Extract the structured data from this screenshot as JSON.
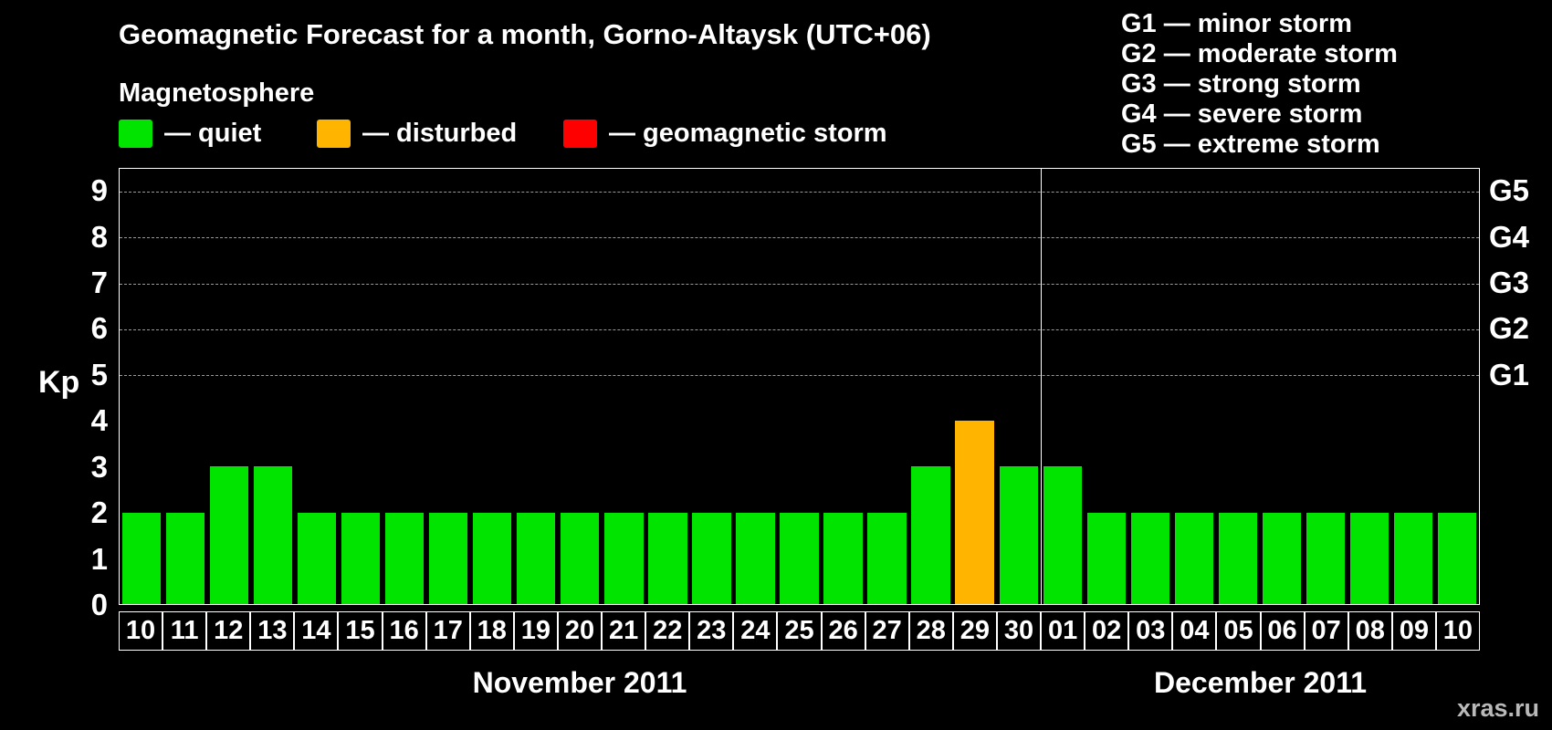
{
  "title": "Geomagnetic Forecast for a month, Gorno-Altaysk (UTC+06)",
  "subtitle": "Magnetosphere",
  "legend": [
    {
      "key": "quiet",
      "label": "— quiet",
      "color": "#00e400"
    },
    {
      "key": "disturbed",
      "label": "— disturbed",
      "color": "#ffb400"
    },
    {
      "key": "storm",
      "label": "— geomagnetic storm",
      "color": "#ff0000"
    }
  ],
  "storm_scale": [
    "G1 — minor storm",
    "G2 — moderate storm",
    "G3 — strong storm",
    "G4 — severe storm",
    "G5 — extreme storm"
  ],
  "watermark": "xras.ru",
  "chart_data": {
    "type": "bar",
    "ylabel": "Kp",
    "ylim": [
      0,
      9.5
    ],
    "yticks": [
      0,
      1,
      2,
      3,
      4,
      5,
      6,
      7,
      8,
      9
    ],
    "gridline_levels": [
      5,
      6,
      7,
      8,
      9
    ],
    "grid": "dashed horizontal at G levels",
    "legend_position": "top",
    "right_axis": [
      {
        "label": "G1",
        "level": 5
      },
      {
        "label": "G2",
        "level": 6
      },
      {
        "label": "G3",
        "level": 7
      },
      {
        "label": "G4",
        "level": 8
      },
      {
        "label": "G5",
        "level": 9
      }
    ],
    "categories": [
      "10",
      "11",
      "12",
      "13",
      "14",
      "15",
      "16",
      "17",
      "18",
      "19",
      "20",
      "21",
      "22",
      "23",
      "24",
      "25",
      "26",
      "27",
      "28",
      "29",
      "30",
      "01",
      "02",
      "03",
      "04",
      "05",
      "06",
      "07",
      "08",
      "09",
      "10"
    ],
    "values": [
      2,
      2,
      3,
      3,
      2,
      2,
      2,
      2,
      2,
      2,
      2,
      2,
      2,
      2,
      2,
      2,
      2,
      2,
      3,
      4,
      3,
      3,
      2,
      2,
      2,
      2,
      2,
      2,
      2,
      2,
      2
    ],
    "statuses": [
      "quiet",
      "quiet",
      "quiet",
      "quiet",
      "quiet",
      "quiet",
      "quiet",
      "quiet",
      "quiet",
      "quiet",
      "quiet",
      "quiet",
      "quiet",
      "quiet",
      "quiet",
      "quiet",
      "quiet",
      "quiet",
      "quiet",
      "disturbed",
      "quiet",
      "quiet",
      "quiet",
      "quiet",
      "quiet",
      "quiet",
      "quiet",
      "quiet",
      "quiet",
      "quiet",
      "quiet"
    ],
    "status_colors": {
      "quiet": "#00e400",
      "disturbed": "#ffb400",
      "storm": "#ff0000"
    },
    "months": [
      {
        "label": "November 2011",
        "start": 0,
        "count": 21
      },
      {
        "label": "December 2011",
        "start": 21,
        "count": 10
      }
    ]
  }
}
